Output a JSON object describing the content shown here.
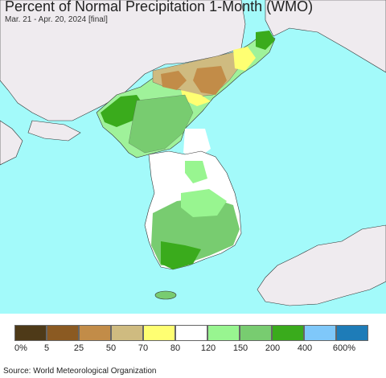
{
  "title": "Percent of Normal Precipitation 1-Month (WMO)",
  "subtitle": "Mar. 21 - Apr. 20, 2024 [final]",
  "source": "Source: World Meteorological Organization",
  "legend": {
    "colors": [
      "#4e3a18",
      "#8b5a22",
      "#c28c48",
      "#cfbb80",
      "#ffff72",
      "#ffffff",
      "#98f590",
      "#78cc70",
      "#3aab1c",
      "#7fc8fa",
      "#1e7cb8"
    ],
    "labels": [
      "0%",
      "5",
      "25",
      "50",
      "70",
      "80",
      "120",
      "150",
      "200",
      "400",
      "600%"
    ]
  },
  "colors": {
    "sea": "#a3fafa",
    "land_other": "#efebef",
    "border": "#222222"
  }
}
